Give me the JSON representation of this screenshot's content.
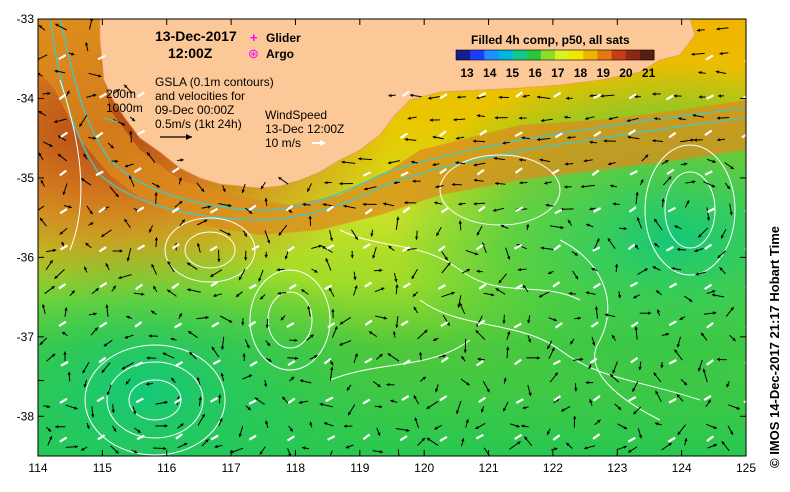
{
  "title": {
    "date": "13-Dec-2017",
    "time": "12:00Z"
  },
  "legend_markers": [
    {
      "label": "Glider",
      "symbol": "+",
      "color": "#ff00ff"
    },
    {
      "label": "Argo",
      "symbol": "⊛",
      "color": "#ff00ff"
    }
  ],
  "gsla_note": {
    "line1": "GSLA (0.1m contours)",
    "line2": "and velocities for",
    "line3": "09-Dec 00:00Z",
    "line4": "0.5m/s (1kt 24h)"
  },
  "isobaths": {
    "a": "200m",
    "b": "1000m"
  },
  "wind_note": {
    "line1": "WindSpeed",
    "line2": "13-Dec 12:00Z",
    "line3": "10 m/s"
  },
  "colorbar": {
    "title": "Filled 4h comp, p50, all sats",
    "ticks": [
      "13",
      "14",
      "15",
      "16",
      "17",
      "18",
      "19",
      "20",
      "21"
    ],
    "colors": [
      "#141e8c",
      "#1e3cff",
      "#1e90ff",
      "#00b4dc",
      "#14c88c",
      "#28c83c",
      "#8cdc28",
      "#dcf028",
      "#f0e600",
      "#f0b400",
      "#e67814",
      "#c83c14",
      "#8c2814",
      "#5a1e10"
    ]
  },
  "credit": "© IMOS 14-Dec-2017 21:17 Hobart Time",
  "map": {
    "lon_range": [
      114,
      125
    ],
    "lat_range": [
      -38.5,
      -33
    ],
    "lon_ticks": [
      "114",
      "115",
      "116",
      "117",
      "118",
      "119",
      "120",
      "121",
      "122",
      "123",
      "124",
      "125"
    ],
    "lat_ticks": [
      "-33",
      "-34",
      "-35",
      "-36",
      "-37",
      "-38"
    ],
    "land_color": "#fcc898",
    "contour_color": "#ffffff",
    "isobath_color": "#40c8c8"
  }
}
